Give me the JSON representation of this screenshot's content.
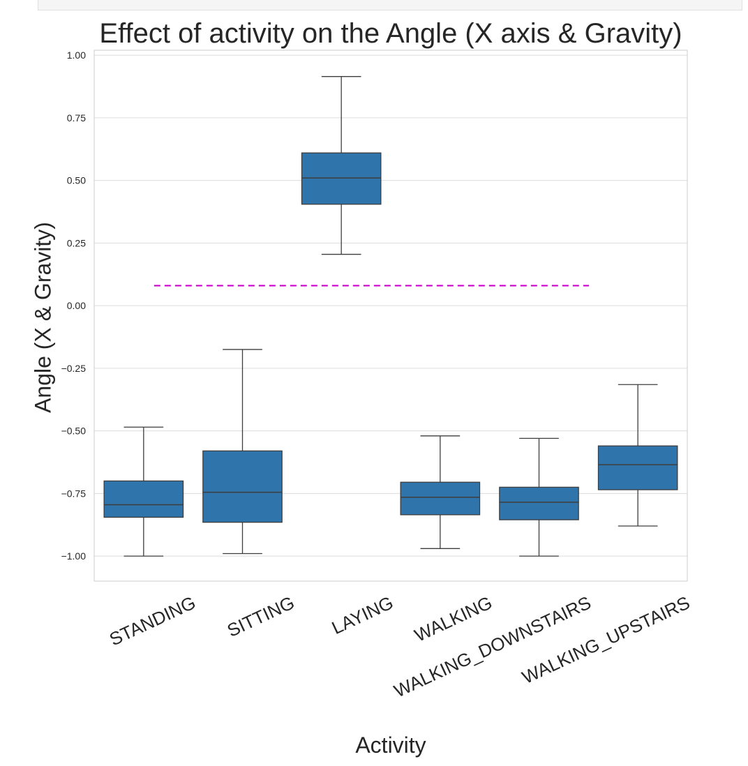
{
  "chart_data": {
    "type": "box",
    "title": "Effect of activity on the Angle (X axis & Gravity)",
    "xlabel": "Activity",
    "ylabel": "Angle (X & Gravity)",
    "ylim": [
      -1.1,
      1.02
    ],
    "yticks": [
      1.0,
      0.75,
      0.5,
      0.25,
      0.0,
      -0.25,
      -0.5,
      -0.75,
      -1.0
    ],
    "ytick_labels": [
      "1.00",
      "0.75",
      "0.50",
      "0.25",
      "0.00",
      "−0.25",
      "−0.50",
      "−0.75",
      "−1.00"
    ],
    "grid": true,
    "box_color": "#2f74aa",
    "edge_color": "#3d3d3d",
    "categories": [
      "STANDING",
      "SITTING",
      "LAYING",
      "WALKING",
      "WALKING_DOWNSTAIRS",
      "WALKING_UPSTAIRS"
    ],
    "boxes": [
      {
        "category": "STANDING",
        "whisker_low": -1.0,
        "q1": -0.845,
        "median": -0.795,
        "q3": -0.7,
        "whisker_high": -0.485
      },
      {
        "category": "SITTING",
        "whisker_low": -0.99,
        "q1": -0.865,
        "median": -0.745,
        "q3": -0.58,
        "whisker_high": -0.175
      },
      {
        "category": "LAYING",
        "whisker_low": 0.205,
        "q1": 0.405,
        "median": 0.51,
        "q3": 0.61,
        "whisker_high": 0.915
      },
      {
        "category": "WALKING",
        "whisker_low": -0.97,
        "q1": -0.835,
        "median": -0.765,
        "q3": -0.705,
        "whisker_high": -0.52
      },
      {
        "category": "WALKING_DOWNSTAIRS",
        "whisker_low": -1.0,
        "q1": -0.855,
        "median": -0.785,
        "q3": -0.725,
        "whisker_high": -0.53
      },
      {
        "category": "WALKING_UPSTAIRS",
        "whisker_low": -0.88,
        "q1": -0.735,
        "median": -0.635,
        "q3": -0.56,
        "whisker_high": -0.315
      }
    ],
    "reference_line": {
      "y": 0.08,
      "style": "dashed",
      "color": "#cc00cc"
    }
  }
}
